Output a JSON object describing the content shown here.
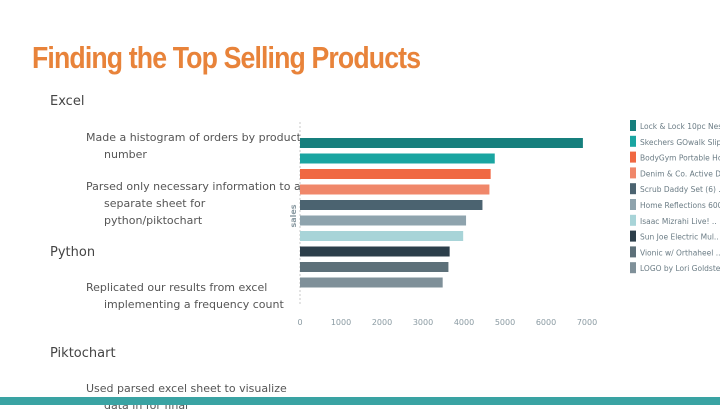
{
  "slide": {
    "title": "Finding the Top Selling Products",
    "sections": [
      {
        "heading": "Excel",
        "bullets": [
          "Made a histogram of orders by product number",
          "Parsed only necessary information to a separate sheet for python/piktochart"
        ]
      },
      {
        "heading": "Python",
        "bullets": [
          "Replicated our results from excel implementing a frequency count"
        ]
      },
      {
        "heading": "Piktochart",
        "bullets": [
          "Used parsed excel sheet to visualize data in for final"
        ]
      }
    ]
  },
  "colors": {
    "title": "#e8833a",
    "accent_bar": "#3aa3a3"
  },
  "chart_data": {
    "type": "bar",
    "orientation": "horizontal",
    "ylabel": "sales",
    "xlim": [
      0,
      7000
    ],
    "xticks": [
      0,
      1000,
      2000,
      3000,
      4000,
      5000,
      6000,
      7000
    ],
    "grid": false,
    "legend_position": "right",
    "categories": [
      "Lock & Lock 10pc Nes..",
      "Skechers GOwalk Slip..",
      "BodyGym Portable Hom..",
      "Denim & Co. Active D..",
      "Scrub Daddy Set (6) ..",
      "Home Reflections 600..",
      "Isaac Mizrahi Live! ..",
      "Sun Joe Electric Mul..",
      "Vionic w/ Orthaheel ..",
      "LOGO by Lori Goldste.."
    ],
    "values": [
      6900,
      4750,
      4650,
      4620,
      4450,
      4050,
      3980,
      3650,
      3620,
      3480
    ],
    "colors": [
      "#167f7d",
      "#1aa5a1",
      "#f06842",
      "#f0876a",
      "#4b6370",
      "#8ea3ad",
      "#a8d4d8",
      "#2c3e4a",
      "#5d7079",
      "#7f9099"
    ]
  }
}
